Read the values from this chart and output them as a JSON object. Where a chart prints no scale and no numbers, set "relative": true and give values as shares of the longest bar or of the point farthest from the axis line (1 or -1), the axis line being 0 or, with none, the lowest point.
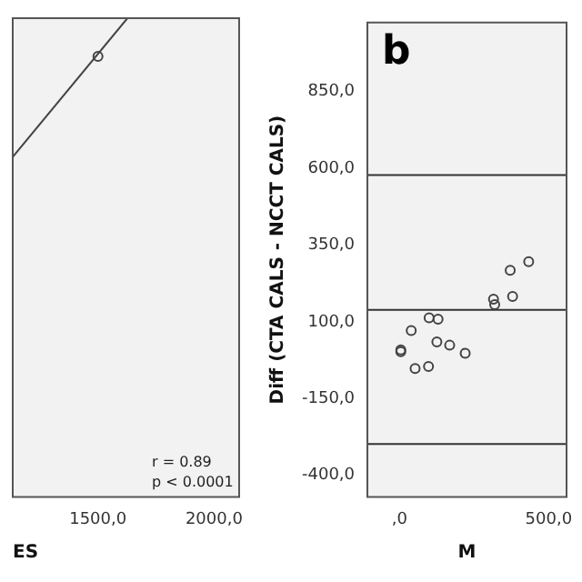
{
  "chart_data": [
    {
      "type": "scatter",
      "relative": true,
      "xlabel": "ES",
      "xlim": [
        1133,
        2108
      ],
      "xticks": [
        {
          "value": 1500,
          "label": "1500,0"
        },
        {
          "value": 2000,
          "label": "2000,0"
        }
      ],
      "tick_labels": "x",
      "grid": false,
      "annotations": [
        "r = 0.89",
        "p < 0.0001"
      ],
      "series": [
        {
          "color": "#444444",
          "marker": "circle",
          "x": [
            1500
          ],
          "values": [
            0.92
          ]
        },
        {
          "type": "line",
          "color": "#444444",
          "marker": "none",
          "x": [
            1133,
            1627
          ],
          "values": [
            0.71,
            1
          ]
        }
      ]
    },
    {
      "type": "scatter",
      "title": "b",
      "xlabel": "M",
      "ylabel": "Diff (CTA CALS - NCCT CALS)",
      "color": "#444444",
      "marker": "circle",
      "grid": false,
      "xlim": [
        -108,
        560
      ],
      "xticks": [
        {
          "value": 0,
          "label": ",0"
        },
        {
          "value": 500,
          "label": "500,0"
        }
      ],
      "ylim": [
        -470,
        1075
      ],
      "yticks": [
        {
          "value": -400,
          "label": "-400,0"
        },
        {
          "value": -150,
          "label": "-150,0"
        },
        {
          "value": 100,
          "label": "100,0"
        },
        {
          "value": 350,
          "label": "350,0"
        },
        {
          "value": 600,
          "label": "600,0"
        },
        {
          "value": 850,
          "label": "850,0"
        }
      ],
      "x": [
        4,
        4,
        39,
        52,
        97,
        99,
        129,
        125,
        168,
        220,
        315,
        319,
        379,
        371,
        433
      ],
      "values": [
        9,
        3,
        72,
        -52,
        -45,
        113,
        109,
        35,
        24,
        -2,
        174,
        156,
        183,
        268,
        296
      ],
      "ref_lines": [
        {
          "axis": "y",
          "value": 578
        },
        {
          "axis": "y",
          "value": 139
        },
        {
          "axis": "y",
          "value": -298
        }
      ]
    }
  ]
}
